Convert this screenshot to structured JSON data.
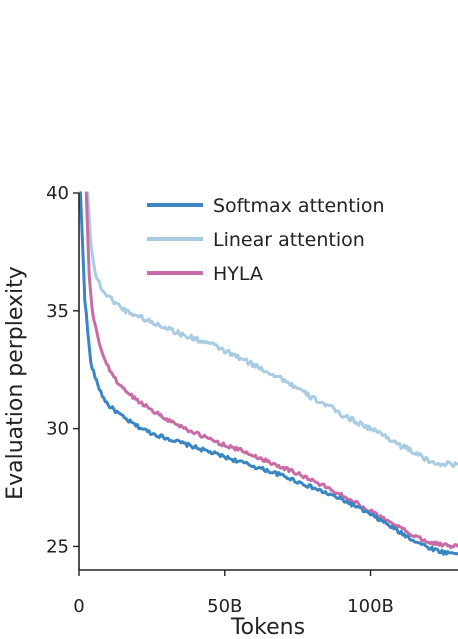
{
  "chart_data": {
    "type": "line",
    "title": "",
    "xlabel": "Tokens",
    "ylabel": "Evaluation perplexity",
    "xlim": [
      0,
      130
    ],
    "ylim": [
      24,
      40
    ],
    "x_unit": "B tokens",
    "xticks": [
      0,
      50,
      100
    ],
    "xtick_labels": [
      "0",
      "50B",
      "100B"
    ],
    "yticks": [
      25,
      30,
      35,
      40
    ],
    "ytick_labels": [
      "25",
      "30",
      "35",
      "40"
    ],
    "grid": false,
    "legend_position": "top-right",
    "series": [
      {
        "name": "Softmax attention",
        "color": "#3A86C2",
        "x": [
          0.5,
          2,
          4,
          6,
          8,
          10,
          13,
          16,
          20,
          25,
          30,
          35,
          40,
          45,
          50,
          55,
          60,
          65,
          70,
          75,
          80,
          85,
          90,
          95,
          100,
          105,
          110,
          115,
          120,
          125,
          130
        ],
        "y": [
          40,
          35.5,
          32.8,
          32.0,
          31.4,
          31.0,
          30.7,
          30.4,
          30.1,
          29.8,
          29.6,
          29.4,
          29.2,
          29.0,
          28.8,
          28.6,
          28.4,
          28.2,
          28.0,
          27.75,
          27.5,
          27.25,
          27.0,
          26.7,
          26.35,
          26.0,
          25.6,
          25.25,
          24.95,
          24.75,
          24.7
        ]
      },
      {
        "name": "Linear attention",
        "color": "#A9CCE3",
        "x": [
          3,
          4,
          5,
          6,
          8,
          10,
          13,
          16,
          20,
          25,
          30,
          35,
          40,
          45,
          50,
          55,
          60,
          65,
          70,
          75,
          80,
          85,
          90,
          95,
          100,
          105,
          110,
          115,
          120,
          125,
          130
        ],
        "y": [
          40,
          38.0,
          37.0,
          36.4,
          35.9,
          35.6,
          35.3,
          35.0,
          34.8,
          34.5,
          34.3,
          34.0,
          33.8,
          33.6,
          33.3,
          33.0,
          32.7,
          32.4,
          32.1,
          31.7,
          31.3,
          31.0,
          30.6,
          30.3,
          30.0,
          29.7,
          29.3,
          29.0,
          28.6,
          28.5,
          28.5
        ]
      },
      {
        "name": "HYLA",
        "color": "#C96BA6",
        "x": [
          2.5,
          3.5,
          4.5,
          6,
          8,
          10,
          13,
          16,
          20,
          25,
          30,
          35,
          40,
          45,
          50,
          55,
          60,
          65,
          70,
          75,
          80,
          85,
          90,
          95,
          100,
          105,
          110,
          115,
          120,
          125,
          130
        ],
        "y": [
          40,
          36.5,
          35.0,
          34.1,
          33.2,
          32.6,
          32.0,
          31.6,
          31.2,
          30.8,
          30.4,
          30.1,
          29.8,
          29.55,
          29.3,
          29.1,
          28.85,
          28.6,
          28.35,
          28.1,
          27.8,
          27.5,
          27.2,
          26.85,
          26.5,
          26.15,
          25.8,
          25.45,
          25.2,
          25.05,
          25.0
        ]
      }
    ]
  }
}
